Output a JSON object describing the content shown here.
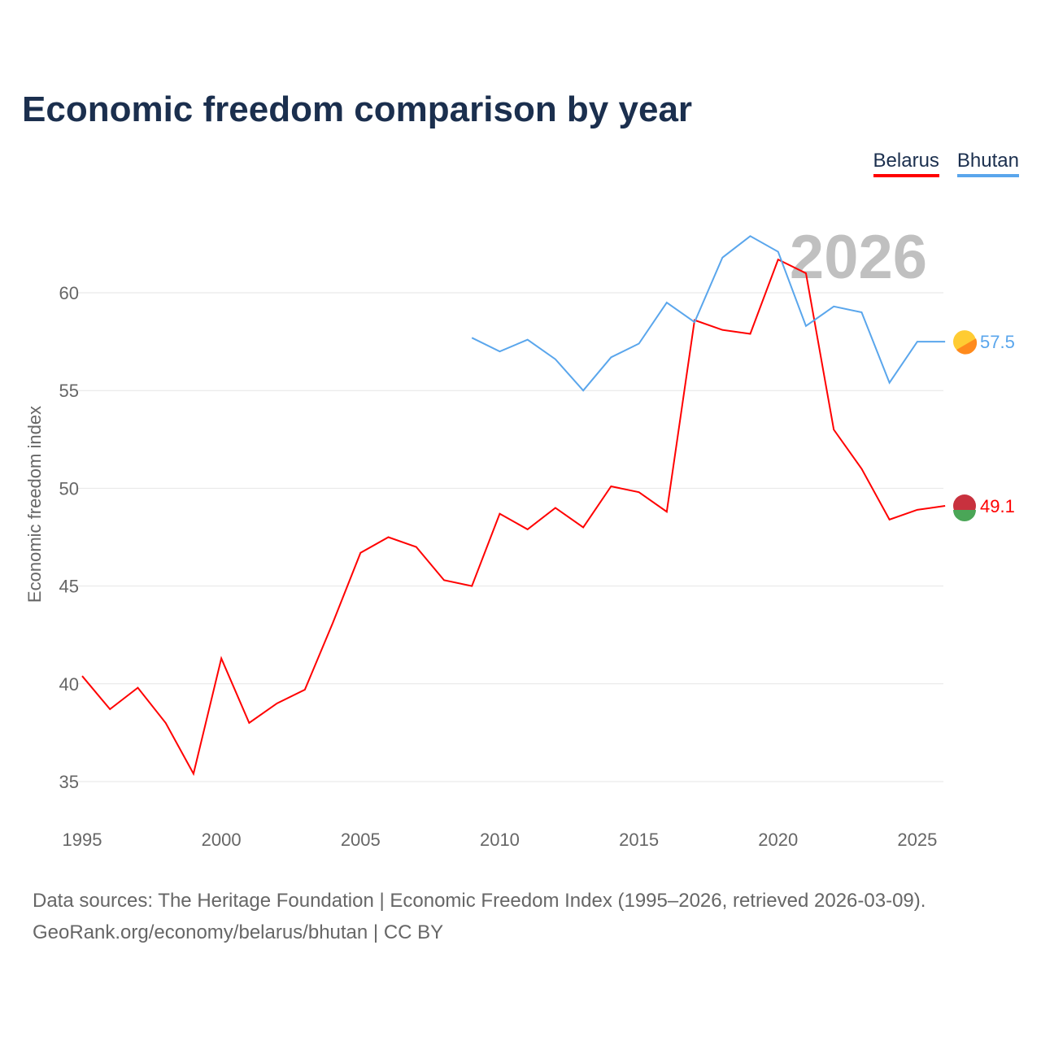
{
  "title": "Economic freedom comparison by year",
  "source_line1": "Data sources: The Heritage Foundation | Economic Freedom Index (1995–2026, retrieved 2026-03-09).",
  "source_line2": "GeoRank.org/economy/belarus/bhutan | CC BY",
  "chart_data": {
    "type": "line",
    "title": "Economic freedom comparison by year",
    "ylabel": "Economic freedom index",
    "xlabel": "",
    "year_watermark": "2026",
    "xlim": [
      1995,
      2026
    ],
    "ylim": [
      35,
      62
    ],
    "xticks": [
      1995,
      2000,
      2005,
      2010,
      2015,
      2020,
      2025
    ],
    "yticks": [
      35,
      40,
      45,
      50,
      55,
      60
    ],
    "grid": true,
    "legend_position": "top-right",
    "series": [
      {
        "name": "Belarus",
        "color": "#ff0000",
        "end_label": "49.1",
        "x": [
          1995,
          1996,
          1997,
          1998,
          1999,
          2000,
          2001,
          2002,
          2003,
          2004,
          2005,
          2006,
          2007,
          2008,
          2009,
          2010,
          2011,
          2012,
          2013,
          2014,
          2015,
          2016,
          2017,
          2018,
          2019,
          2020,
          2021,
          2022,
          2023,
          2024,
          2025,
          2026
        ],
        "values": [
          40.4,
          38.7,
          39.8,
          38.0,
          35.4,
          41.3,
          38.0,
          39.0,
          39.7,
          43.1,
          46.7,
          47.5,
          47.0,
          45.3,
          45.0,
          48.7,
          47.9,
          49.0,
          48.0,
          50.1,
          49.8,
          48.8,
          58.6,
          58.1,
          57.9,
          61.7,
          61.0,
          53.0,
          51.0,
          48.4,
          48.9,
          49.1
        ]
      },
      {
        "name": "Bhutan",
        "color": "#5aa6ec",
        "end_label": "57.5",
        "x": [
          2009,
          2010,
          2011,
          2012,
          2013,
          2014,
          2015,
          2016,
          2017,
          2018,
          2019,
          2020,
          2021,
          2022,
          2023,
          2024,
          2025,
          2026
        ],
        "values": [
          57.7,
          57.0,
          57.6,
          56.6,
          55.0,
          56.7,
          57.4,
          59.5,
          58.5,
          61.8,
          62.9,
          62.1,
          58.3,
          59.3,
          59.0,
          55.4,
          57.5,
          57.5
        ]
      }
    ]
  }
}
